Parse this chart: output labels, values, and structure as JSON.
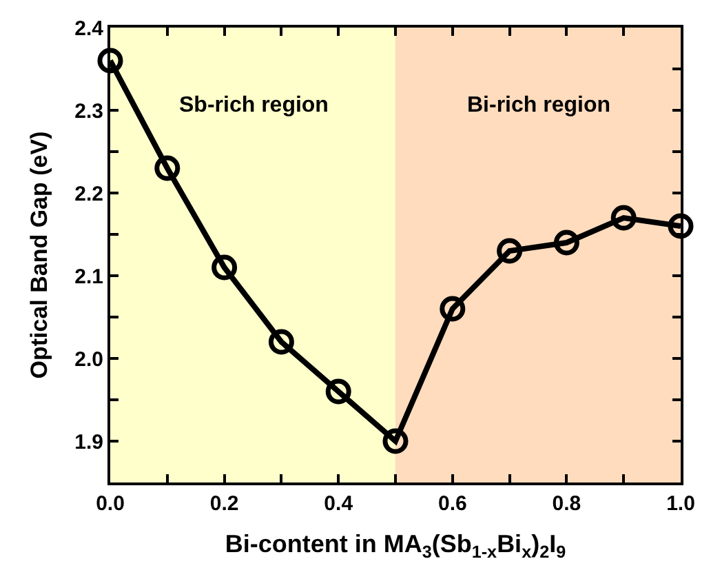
{
  "chart_data": {
    "type": "line",
    "xlabel": "Bi-content in MA$_{3}$(Sb$_{1-x}$Bi$_{x}$)$_{2}$I$_{9}$",
    "ylabel": "Optical Band Gap (eV)",
    "x": [
      0.0,
      0.1,
      0.2,
      0.3,
      0.4,
      0.5,
      0.6,
      0.7,
      0.8,
      0.9,
      1.0
    ],
    "series": [
      {
        "color": "#000000",
        "values": [
          2.36,
          2.23,
          2.11,
          2.02,
          1.96,
          1.9,
          2.06,
          2.13,
          2.14,
          2.17,
          2.16
        ]
      }
    ],
    "xlim": [
      0.0,
      1.0
    ],
    "ylim": [
      1.85,
      2.4
    ],
    "xticks": [
      {
        "value": 0,
        "label": "0.0"
      },
      {
        "value": 0.1,
        "label": null
      },
      0.2,
      {
        "value": 0.3,
        "label": null
      },
      0.4,
      {
        "value": 0.5,
        "label": null
      },
      0.6,
      {
        "value": 0.7,
        "label": null
      },
      0.8,
      {
        "value": 0.9,
        "label": null
      },
      {
        "value": 1,
        "label": "1.0"
      }
    ],
    "yticks": [
      {
        "value": 1.85,
        "label": null
      },
      1.9,
      {
        "value": 1.95,
        "label": null
      },
      {
        "value": 2,
        "label": "2.0"
      },
      {
        "value": 2.05,
        "label": null
      },
      2.1,
      {
        "value": 2.15,
        "label": null
      },
      2.2,
      {
        "value": 2.25,
        "label": null
      },
      2.3,
      {
        "value": 2.35,
        "label": null
      },
      2.4
    ],
    "bands": [
      {
        "axis": "x",
        "from": 0.0,
        "to": 0.5,
        "label": "Sb-rich region",
        "color": "#ffffcc"
      },
      {
        "axis": "x",
        "from": 0.5,
        "to": 1.0,
        "label": "Bi-rich region",
        "color": "#fedcbd"
      }
    ],
    "marker": "circle",
    "line_style": "solid",
    "grid": false,
    "legend": false
  }
}
